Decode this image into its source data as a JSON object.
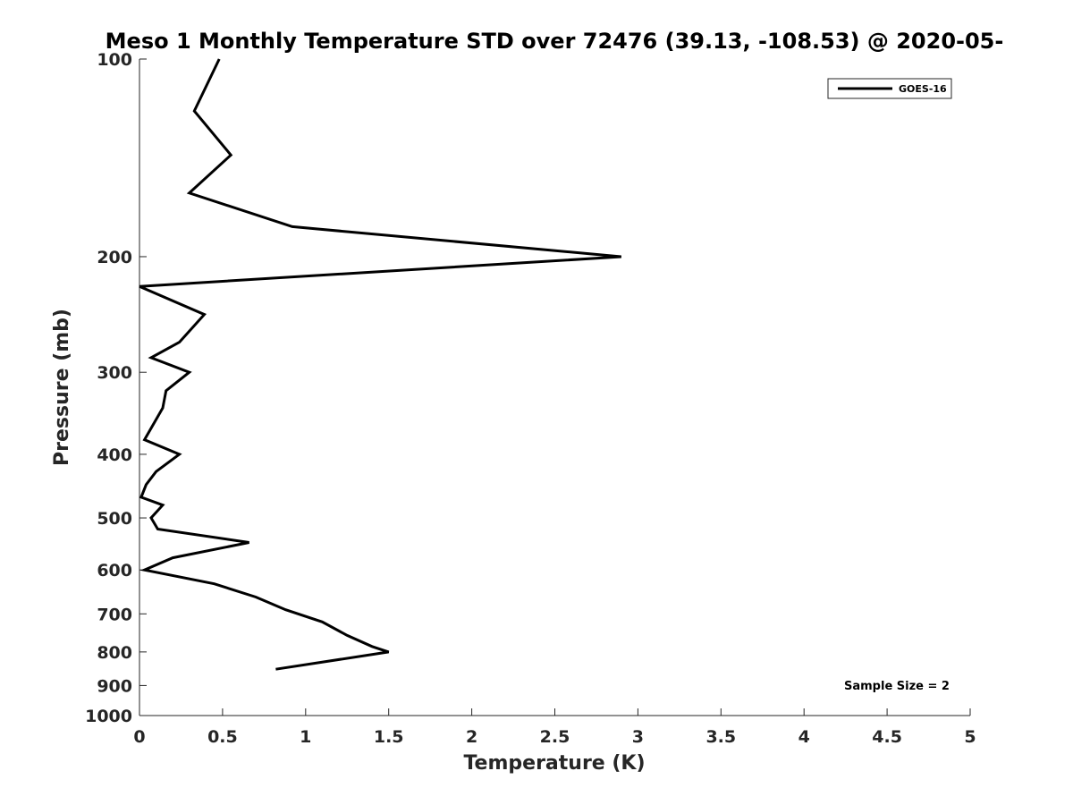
{
  "chart_data": {
    "type": "line",
    "title": "Meso 1 Monthly Temperature STD over 72476 (39.13, -108.53) @ 2020-05-",
    "xlabel": "Temperature (K)",
    "ylabel": "Pressure (mb)",
    "xlim": [
      0,
      5
    ],
    "ylim": [
      100,
      1000
    ],
    "y_scale": "log",
    "y_reversed": true,
    "grid": false,
    "legend_position": "top-right",
    "x_ticks": [
      0,
      0.5,
      1,
      1.5,
      2,
      2.5,
      3,
      3.5,
      4,
      4.5,
      5
    ],
    "x_tick_labels": [
      "0",
      "0.5",
      "1",
      "1.5",
      "2",
      "2.5",
      "3",
      "3.5",
      "4",
      "4.5",
      "5"
    ],
    "y_ticks": [
      100,
      200,
      300,
      400,
      500,
      600,
      700,
      800,
      900,
      1000
    ],
    "y_tick_labels": [
      "100",
      "200",
      "300",
      "400",
      "500",
      "600",
      "700",
      "800",
      "900",
      "1000"
    ],
    "series": [
      {
        "name": "GOES-16",
        "color": "#000000",
        "points": [
          [
            0.48,
            100
          ],
          [
            0.33,
            120
          ],
          [
            0.55,
            140
          ],
          [
            0.3,
            160
          ],
          [
            0.92,
            180
          ],
          [
            2.9,
            200
          ],
          [
            0.0,
            222
          ],
          [
            0.39,
            245
          ],
          [
            0.24,
            270
          ],
          [
            0.07,
            285
          ],
          [
            0.3,
            300
          ],
          [
            0.16,
            320
          ],
          [
            0.14,
            340
          ],
          [
            0.03,
            380
          ],
          [
            0.24,
            400
          ],
          [
            0.1,
            425
          ],
          [
            0.04,
            445
          ],
          [
            0.01,
            465
          ],
          [
            0.14,
            478
          ],
          [
            0.07,
            500
          ],
          [
            0.11,
            520
          ],
          [
            0.66,
            545
          ],
          [
            0.2,
            575
          ],
          [
            0.03,
            600
          ],
          [
            0.45,
            630
          ],
          [
            0.7,
            660
          ],
          [
            0.88,
            690
          ],
          [
            1.1,
            720
          ],
          [
            1.25,
            755
          ],
          [
            1.4,
            785
          ],
          [
            1.5,
            800
          ],
          [
            0.82,
            850
          ]
        ]
      }
    ],
    "annotation": "Sample Size = 2"
  }
}
